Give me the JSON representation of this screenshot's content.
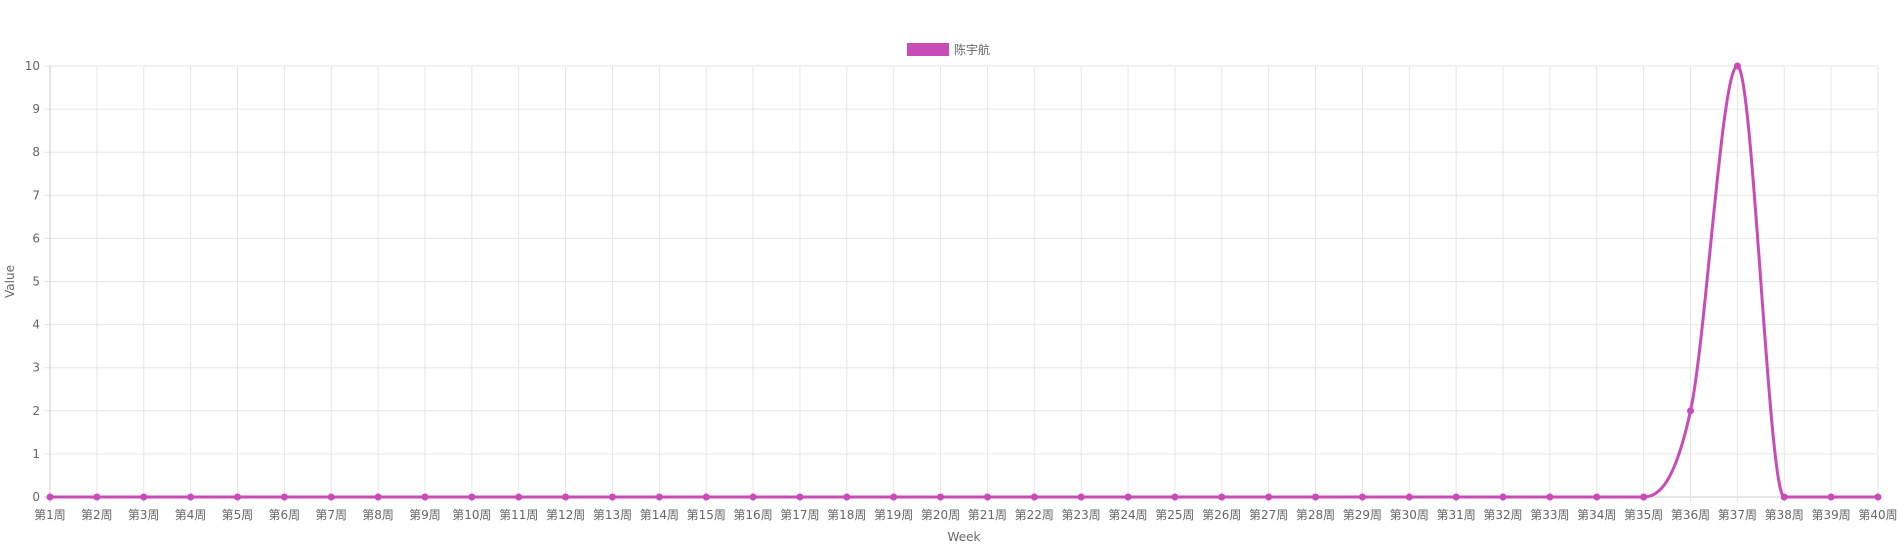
{
  "chart_data": {
    "type": "line",
    "title": "",
    "xlabel": "Week",
    "ylabel": "Value",
    "ylim": [
      0,
      10
    ],
    "yticks": [
      0,
      1,
      2,
      3,
      4,
      5,
      6,
      7,
      8,
      9,
      10
    ],
    "grid": true,
    "legend_position": "top",
    "categories": [
      "第1周",
      "第2周",
      "第3周",
      "第4周",
      "第5周",
      "第6周",
      "第7周",
      "第8周",
      "第9周",
      "第10周",
      "第11周",
      "第12周",
      "第13周",
      "第14周",
      "第15周",
      "第16周",
      "第17周",
      "第18周",
      "第19周",
      "第20周",
      "第21周",
      "第22周",
      "第23周",
      "第24周",
      "第25周",
      "第26周",
      "第27周",
      "第28周",
      "第29周",
      "第30周",
      "第31周",
      "第32周",
      "第33周",
      "第34周",
      "第35周",
      "第36周",
      "第37周",
      "第38周",
      "第39周",
      "第40周"
    ],
    "series": [
      {
        "name": "陈宇航",
        "color": "#c94bb8",
        "values": [
          0,
          0,
          0,
          0,
          0,
          0,
          0,
          0,
          0,
          0,
          0,
          0,
          0,
          0,
          0,
          0,
          0,
          0,
          0,
          0,
          0,
          0,
          0,
          0,
          0,
          0,
          0,
          0,
          0,
          0,
          0,
          0,
          0,
          0,
          0,
          2,
          10,
          0,
          0,
          0
        ]
      }
    ]
  }
}
